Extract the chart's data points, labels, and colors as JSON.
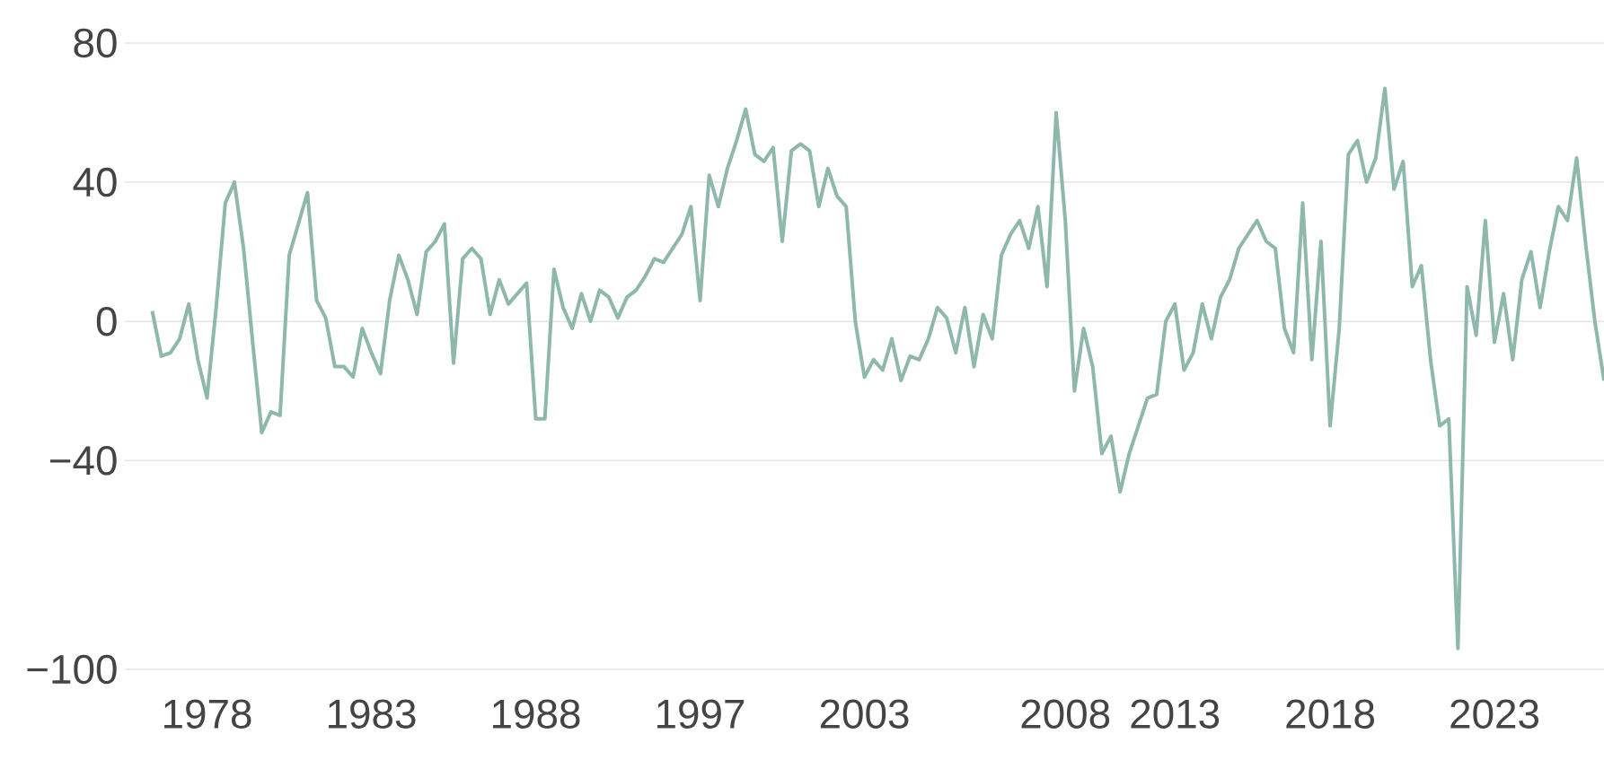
{
  "chart_data": {
    "type": "line",
    "categories": [
      null,
      null,
      null,
      null,
      null,
      null,
      "1978",
      null,
      null,
      null,
      null,
      null,
      null,
      null,
      null,
      null,
      null,
      null,
      null,
      null,
      null,
      null,
      null,
      null,
      "1983",
      null,
      null,
      null,
      null,
      null,
      null,
      null,
      null,
      null,
      null,
      null,
      null,
      null,
      null,
      null,
      null,
      null,
      "1988",
      null,
      null,
      null,
      null,
      null,
      null,
      null,
      null,
      null,
      null,
      null,
      null,
      null,
      null,
      null,
      null,
      null,
      "1997",
      null,
      null,
      null,
      null,
      null,
      null,
      null,
      null,
      null,
      null,
      null,
      null,
      null,
      null,
      null,
      null,
      null,
      "2003",
      null,
      null,
      null,
      null,
      null,
      null,
      null,
      null,
      null,
      null,
      null,
      null,
      null,
      null,
      null,
      null,
      null,
      null,
      null,
      null,
      null,
      "2008",
      null,
      null,
      null,
      null,
      null,
      null,
      null,
      null,
      null,
      null,
      null,
      "2013",
      null,
      null,
      null,
      null,
      null,
      null,
      null,
      null,
      null,
      null,
      null,
      null,
      null,
      null,
      null,
      null,
      "2018",
      null,
      null,
      null,
      null,
      null,
      null,
      null,
      null,
      null,
      null,
      null,
      null,
      null,
      null,
      null,
      null,
      null,
      "2023",
      null,
      null,
      null,
      null,
      null,
      null,
      null,
      null,
      null,
      null,
      null,
      null
    ],
    "values": [
      3,
      -10,
      -9,
      -5,
      5,
      -11,
      -22,
      4,
      34,
      40,
      21,
      -6,
      -32,
      -26,
      -27,
      19,
      28,
      37,
      6,
      1,
      -13,
      -13,
      -16,
      -2,
      -9,
      -15,
      6,
      19,
      12,
      2,
      20,
      23,
      28,
      -12,
      18,
      21,
      18,
      2,
      12,
      5,
      8,
      11,
      -28,
      -28,
      15,
      4,
      -2,
      8,
      0,
      9,
      7,
      1,
      7,
      9,
      13,
      18,
      17,
      21,
      25,
      33,
      6,
      42,
      33,
      44,
      52,
      61,
      48,
      46,
      50,
      23,
      49,
      51,
      49,
      33,
      44,
      36,
      33,
      0,
      -16,
      -11,
      -14,
      -5,
      -17,
      -10,
      -11,
      -5,
      4,
      1,
      -9,
      4,
      -13,
      2,
      -5,
      19,
      25,
      29,
      21,
      33,
      10,
      60,
      29,
      -20,
      -2,
      -13,
      -38,
      -33,
      -49,
      -38,
      -30,
      -22,
      -21,
      0,
      5,
      -14,
      -9,
      5,
      -5,
      7,
      12,
      21,
      25,
      29,
      23,
      21,
      -2,
      -9,
      34,
      -11,
      23,
      -30,
      -2,
      48,
      52,
      40,
      47,
      67,
      38,
      46,
      10,
      16,
      -11,
      -30,
      -28,
      -94,
      10,
      -4,
      29,
      -6,
      8,
      -11,
      12,
      20,
      4,
      20,
      33,
      29,
      47,
      22,
      0,
      -17
    ],
    "color": "#8fb8ad",
    "ylim": [
      -100,
      80
    ],
    "yticks": [
      {
        "value": -100,
        "label": "−100"
      },
      {
        "value": -40,
        "label": "−40"
      },
      0,
      40,
      80
    ],
    "grid": "y"
  }
}
